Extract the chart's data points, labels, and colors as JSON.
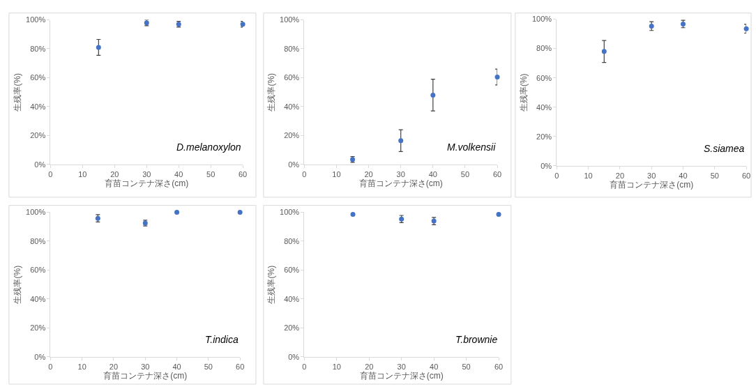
{
  "chart_data": [
    {
      "type": "scatter",
      "x": [
        15,
        30,
        40,
        60
      ],
      "values": [
        81,
        98,
        97,
        97
      ],
      "errors": [
        5.5,
        2,
        2,
        2
      ],
      "color": "#4472c4",
      "marker": "circle",
      "xlabel": "育苗コンテナ深さ(cm)",
      "ylabel": "生残率(%)",
      "annotations": [
        "D.melanoxylon"
      ],
      "xlim": [
        0,
        60
      ],
      "xticks": [
        0,
        10,
        20,
        30,
        40,
        50,
        60
      ],
      "ylim": [
        0,
        100
      ],
      "yticks": [
        {
          "value": 0,
          "label": "0%"
        },
        {
          "value": 20,
          "label": "20%"
        },
        {
          "value": 40,
          "label": "40%"
        },
        {
          "value": 60,
          "label": "60%"
        },
        {
          "value": 80,
          "label": "80%"
        },
        {
          "value": 100,
          "label": "100%"
        }
      ],
      "grid": false,
      "legend": false
    },
    {
      "type": "scatter",
      "x": [
        15,
        30,
        40,
        60
      ],
      "values": [
        3.5,
        16.5,
        48,
        60.5
      ],
      "errors": [
        2,
        7.5,
        11,
        5.5
      ],
      "color": "#4472c4",
      "marker": "circle",
      "xlabel": "育苗コンテナ深さ(cm)",
      "ylabel": "生残率(%)",
      "annotations": [
        "M.volkensii"
      ],
      "xlim": [
        0,
        60
      ],
      "xticks": [
        0,
        10,
        20,
        30,
        40,
        50,
        60
      ],
      "ylim": [
        0,
        100
      ],
      "yticks": [
        {
          "value": 0,
          "label": "0%"
        },
        {
          "value": 20,
          "label": "20%"
        },
        {
          "value": 40,
          "label": "40%"
        },
        {
          "value": 60,
          "label": "60%"
        },
        {
          "value": 80,
          "label": "80%"
        },
        {
          "value": 100,
          "label": "100%"
        }
      ],
      "grid": false,
      "legend": false
    },
    {
      "type": "scatter",
      "x": [
        15,
        30,
        40,
        60
      ],
      "values": [
        78,
        95.3,
        96.7,
        93.5
      ],
      "errors": [
        7.5,
        3,
        2.5,
        3
      ],
      "color": "#4472c4",
      "marker": "circle",
      "xlabel": "育苗コンテナ深さ(cm)",
      "ylabel": "生残率(%)",
      "annotations": [
        "S.siamea"
      ],
      "xlim": [
        0,
        60
      ],
      "xticks": [
        0,
        10,
        20,
        30,
        40,
        50,
        60
      ],
      "ylim": [
        0,
        100
      ],
      "yticks": [
        {
          "value": 0,
          "label": "0%"
        },
        {
          "value": 20,
          "label": "20%"
        },
        {
          "value": 40,
          "label": "40%"
        },
        {
          "value": 60,
          "label": "60%"
        },
        {
          "value": 80,
          "label": "80%"
        },
        {
          "value": 100,
          "label": "100%"
        }
      ],
      "grid": false,
      "legend": false
    },
    {
      "type": "scatter",
      "x": [
        15,
        30,
        40,
        60
      ],
      "values": [
        95.8,
        92.5,
        100,
        100
      ],
      "errors": [
        2.5,
        2,
        null,
        null
      ],
      "color": "#4472c4",
      "marker": "circle",
      "xlabel": "育苗コンテナ深さ(cm)",
      "ylabel": "生残率(%)",
      "annotations": [
        "T.indica"
      ],
      "xlim": [
        0,
        60
      ],
      "xticks": [
        0,
        10,
        20,
        30,
        40,
        50,
        60
      ],
      "ylim": [
        0,
        100
      ],
      "yticks": [
        {
          "value": 0,
          "label": "0%"
        },
        {
          "value": 20,
          "label": "20%"
        },
        {
          "value": 40,
          "label": "40%"
        },
        {
          "value": 60,
          "label": "60%"
        },
        {
          "value": 80,
          "label": "80%"
        },
        {
          "value": 100,
          "label": "100%"
        }
      ],
      "grid": false,
      "legend": false
    },
    {
      "type": "scatter",
      "x": [
        15,
        30,
        40,
        60
      ],
      "values": [
        98.5,
        95.3,
        93.9,
        98.5
      ],
      "errors": [
        null,
        2.5,
        2.5,
        null
      ],
      "color": "#4472c4",
      "marker": "circle",
      "xlabel": "育苗コンテナ深さ(cm)",
      "ylabel": "生残率(%)",
      "annotations": [
        "T.brownie"
      ],
      "xlim": [
        0,
        60
      ],
      "xticks": [
        0,
        10,
        20,
        30,
        40,
        50,
        60
      ],
      "ylim": [
        0,
        100
      ],
      "yticks": [
        {
          "value": 0,
          "label": "0%"
        },
        {
          "value": 20,
          "label": "20%"
        },
        {
          "value": 40,
          "label": "40%"
        },
        {
          "value": 60,
          "label": "60%"
        },
        {
          "value": 80,
          "label": "80%"
        },
        {
          "value": 100,
          "label": "100%"
        }
      ],
      "grid": false,
      "legend": false
    }
  ]
}
